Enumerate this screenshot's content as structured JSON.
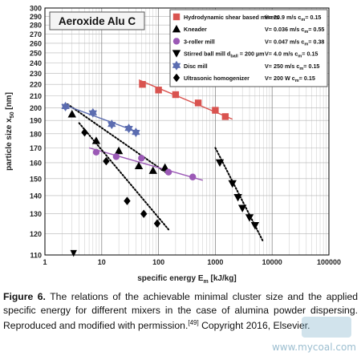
{
  "chart_data": {
    "type": "scatter",
    "title": "Aeroxide Alu C",
    "xlabel_main": "specific energy  E",
    "xlabel_sub": "m",
    "xlabel_unit": " [kJ/kg]",
    "ylabel_main": "particle size x",
    "ylabel_sub": "50",
    "ylabel_unit": " [nm]",
    "xscale": "log",
    "yscale": "log",
    "xlim": [
      1,
      100000
    ],
    "ylim": [
      110,
      300
    ],
    "x_tick_values": [
      1,
      10,
      100,
      1000,
      10000,
      100000
    ],
    "x_tick_labels": [
      "1",
      "10",
      "100",
      "1000",
      "10000",
      "100000"
    ],
    "y_tick_values": [
      110,
      120,
      130,
      140,
      150,
      160,
      170,
      180,
      190,
      200,
      210,
      220,
      230,
      240,
      250,
      260,
      270,
      280,
      290,
      300
    ],
    "y_tick_labels": [
      "110",
      "120",
      "130",
      "140",
      "150",
      "160",
      "170",
      "180",
      "190",
      "200",
      "210",
      "220",
      "230",
      "240",
      "250",
      "260",
      "270",
      "280",
      "290",
      "300"
    ],
    "grid": true,
    "legend_position": "top-right",
    "series": [
      {
        "name": "Hydrodynamic shear based mixers",
        "params": [
          "V= 20.9 m/s",
          "c",
          "m",
          "= 0.15"
        ],
        "marker": "square",
        "color": "#d9534f",
        "points": [
          [
            52,
            220
          ],
          [
            100,
            215
          ],
          [
            200,
            211
          ],
          [
            500,
            204
          ],
          [
            1000,
            198
          ],
          [
            1500,
            193
          ]
        ],
        "fit": {
          "x": [
            45,
            2000
          ],
          "y": [
            224,
            191
          ],
          "style": "solid"
        }
      },
      {
        "name": "Kneader",
        "params": [
          "V= 0.036 m/s",
          "c",
          "m",
          "= 0.55"
        ],
        "marker": "triangle-up",
        "color": "#000000",
        "points": [
          [
            3,
            195
          ],
          [
            8,
            175
          ],
          [
            20,
            168
          ],
          [
            45,
            158
          ],
          [
            80,
            155
          ],
          [
            130,
            157
          ]
        ],
        "fit": {
          "x": [
            2.5,
            160
          ],
          "y": [
            203,
            152
          ],
          "style": "dotted"
        }
      },
      {
        "name": "3-roller mill",
        "params": [
          "V= 0.047 m/s",
          "c",
          "m",
          "= 0.38"
        ],
        "marker": "circle",
        "color": "#9b59b6",
        "points": [
          [
            8,
            167
          ],
          [
            18,
            164
          ],
          [
            50,
            163
          ],
          [
            150,
            154
          ],
          [
            400,
            151
          ]
        ],
        "fit": {
          "x": [
            6,
            600
          ],
          "y": [
            170,
            149
          ],
          "style": "solid"
        }
      },
      {
        "name": "Stirred ball mill  d",
        "name_sub": "ball",
        "name_after": " = 200 µm",
        "params": [
          "V= 4.0 m/s",
          "c",
          "m",
          "= 0.15"
        ],
        "marker": "triangle-down",
        "color": "#000000",
        "points": [
          [
            1200,
            160
          ],
          [
            2000,
            147
          ],
          [
            2500,
            139
          ],
          [
            3000,
            133
          ],
          [
            4000,
            128
          ],
          [
            5000,
            124
          ]
        ],
        "fit": {
          "x": [
            1000,
            7000
          ],
          "y": [
            170,
            116
          ],
          "style": "dotted"
        }
      },
      {
        "name": "Disc mill",
        "params": [
          "V= 250 m/s",
          "c",
          "m",
          "= 0.15"
        ],
        "marker": "star",
        "color": "#5b6cb0",
        "points": [
          [
            2.3,
            201
          ],
          [
            7,
            196
          ],
          [
            15,
            187
          ],
          [
            30,
            184
          ],
          [
            40,
            181
          ]
        ],
        "fit": {
          "x": [
            2,
            45
          ],
          "y": [
            203,
            181
          ],
          "style": "solid"
        }
      },
      {
        "name": "Ultrasonic homogenizer",
        "params": [
          "V= 200 W",
          "c",
          "m",
          "= 0.15"
        ],
        "marker": "diamond",
        "color": "#000000",
        "points": [
          [
            5,
            181
          ],
          [
            12,
            161
          ],
          [
            28,
            137
          ],
          [
            55,
            130
          ],
          [
            95,
            125
          ]
        ],
        "fit": {
          "x": [
            4,
            150
          ],
          "y": [
            188,
            122
          ],
          "style": "dotted"
        }
      }
    ],
    "annotations": [
      {
        "text": "▼",
        "x": 3.2,
        "y": 111,
        "color": "#000000"
      }
    ]
  },
  "caption": {
    "label": "Figure 6.",
    "text": " The relations of the achievable minimal cluster size and the applied specific energy for different mixers in the case of alumina powder dispersing. Reproduced and modified with permission.",
    "ref": "[49]",
    "text2": " Copyright 2016, Elsevier."
  },
  "watermark": "www.mycoal.com"
}
